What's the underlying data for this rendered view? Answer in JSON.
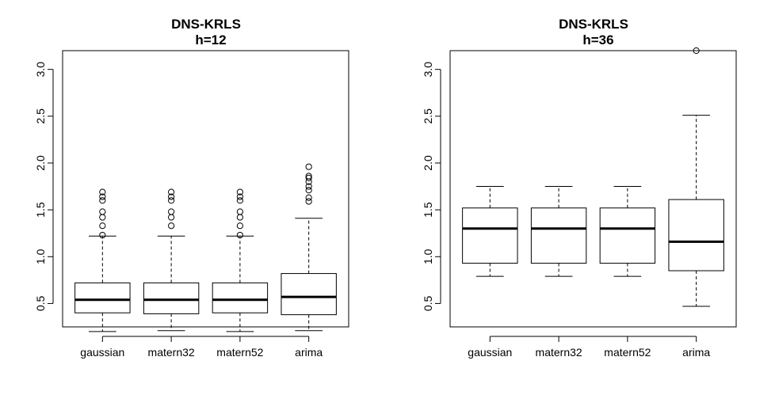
{
  "chart_data": [
    {
      "type": "boxplot",
      "title": "DNS-KRLS",
      "subtitle": "h=12",
      "xlabel": "",
      "ylabel": "",
      "categories": [
        "gaussian",
        "matern32",
        "matern52",
        "arima"
      ],
      "ylim": [
        0.25,
        3.2
      ],
      "yticks": [
        0.5,
        1.0,
        1.5,
        2.0,
        2.5,
        3.0
      ],
      "ytick_labels": [
        "0.5",
        "1.0",
        "1.5",
        "2.0",
        "2.5",
        "3.0"
      ],
      "boxes": [
        {
          "whisker_low": 0.2,
          "q1": 0.4,
          "median": 0.54,
          "q3": 0.72,
          "whisker_high": 1.22,
          "outliers": [
            1.23,
            1.33,
            1.42,
            1.48,
            1.6,
            1.64,
            1.69
          ]
        },
        {
          "whisker_low": 0.21,
          "q1": 0.39,
          "median": 0.54,
          "q3": 0.72,
          "whisker_high": 1.22,
          "outliers": [
            1.33,
            1.42,
            1.48,
            1.6,
            1.64,
            1.69
          ]
        },
        {
          "whisker_low": 0.2,
          "q1": 0.4,
          "median": 0.54,
          "q3": 0.72,
          "whisker_high": 1.22,
          "outliers": [
            1.23,
            1.33,
            1.42,
            1.48,
            1.6,
            1.64,
            1.69
          ]
        },
        {
          "whisker_low": 0.21,
          "q1": 0.38,
          "median": 0.57,
          "q3": 0.82,
          "whisker_high": 1.41,
          "outliers": [
            1.59,
            1.63,
            1.71,
            1.75,
            1.8,
            1.84,
            1.86,
            1.96
          ]
        }
      ]
    },
    {
      "type": "boxplot",
      "title": "DNS-KRLS",
      "subtitle": "h=36",
      "xlabel": "",
      "ylabel": "",
      "categories": [
        "gaussian",
        "matern32",
        "matern52",
        "arima"
      ],
      "ylim": [
        0.25,
        3.2
      ],
      "yticks": [
        0.5,
        1.0,
        1.5,
        2.0,
        2.5,
        3.0
      ],
      "ytick_labels": [
        "0.5",
        "1.0",
        "1.5",
        "2.0",
        "2.5",
        "3.0"
      ],
      "boxes": [
        {
          "whisker_low": 0.79,
          "q1": 0.93,
          "median": 1.3,
          "q3": 1.52,
          "whisker_high": 1.75,
          "outliers": []
        },
        {
          "whisker_low": 0.79,
          "q1": 0.93,
          "median": 1.3,
          "q3": 1.52,
          "whisker_high": 1.75,
          "outliers": []
        },
        {
          "whisker_low": 0.79,
          "q1": 0.93,
          "median": 1.3,
          "q3": 1.52,
          "whisker_high": 1.75,
          "outliers": []
        },
        {
          "whisker_low": 0.47,
          "q1": 0.85,
          "median": 1.16,
          "q3": 1.61,
          "whisker_high": 2.51,
          "outliers": [
            3.2
          ]
        }
      ]
    }
  ]
}
